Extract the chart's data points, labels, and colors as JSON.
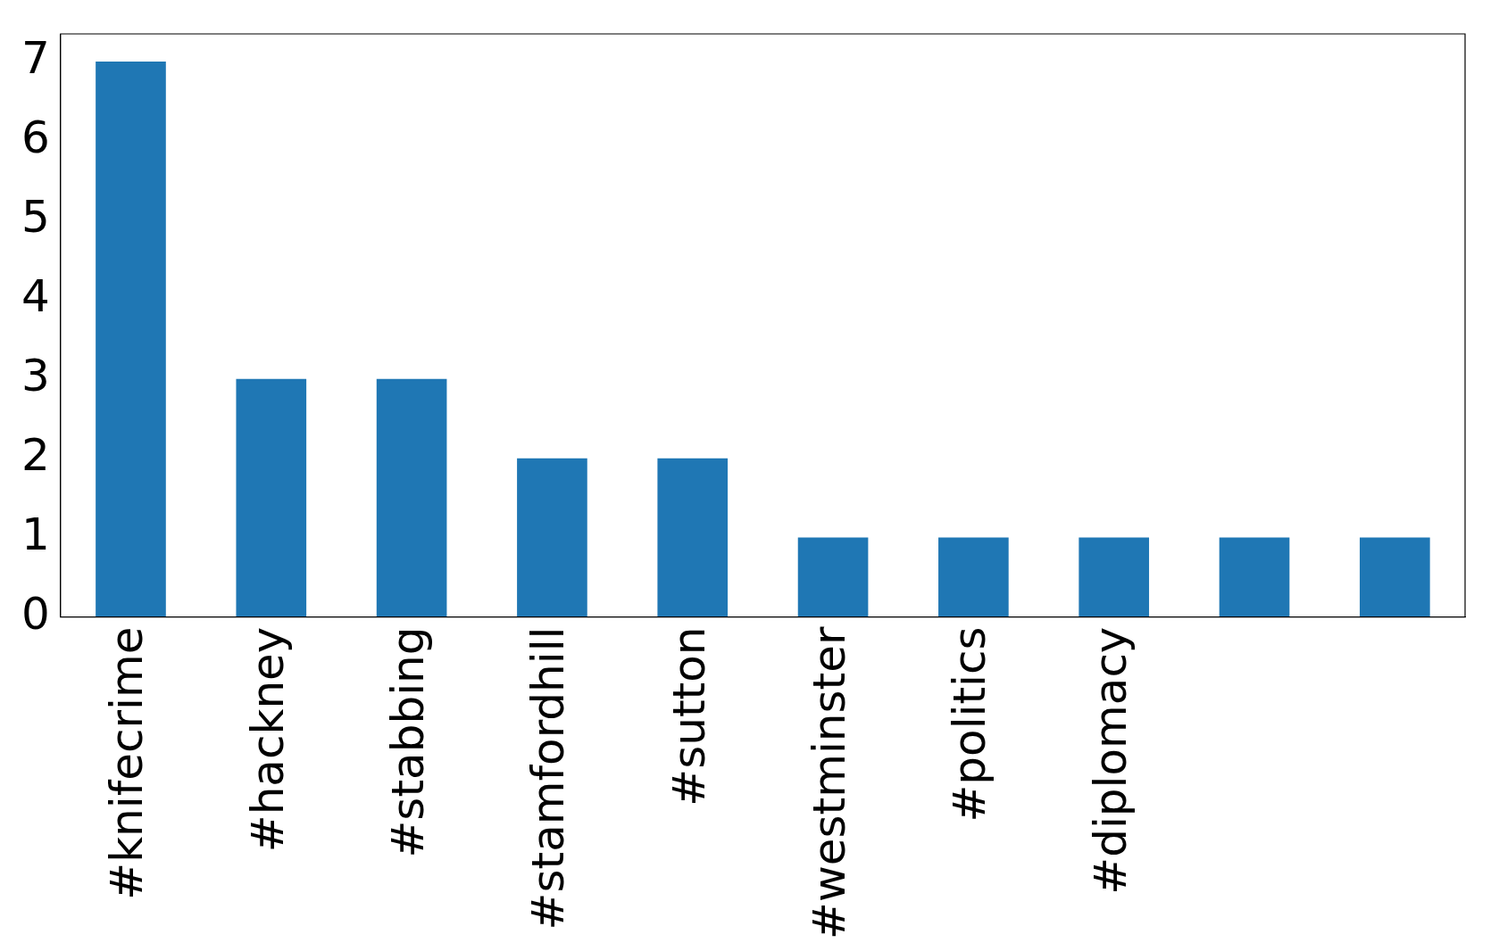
{
  "chart_data": {
    "type": "bar",
    "categories": [
      "#knifecrime",
      "#hackney",
      "#stabbing",
      "#stamfordhill",
      "#sutton",
      "#westminster",
      "#politics",
      "#diplomacy",
      null,
      null
    ],
    "values": [
      7,
      3,
      3,
      2,
      2,
      1,
      1,
      1,
      1,
      1
    ],
    "color": "#1f77b4",
    "ylim": [
      0,
      7.35
    ],
    "yticks": [
      0,
      1,
      2,
      3,
      4,
      5,
      6,
      7
    ],
    "grid": false,
    "legend": false
  }
}
